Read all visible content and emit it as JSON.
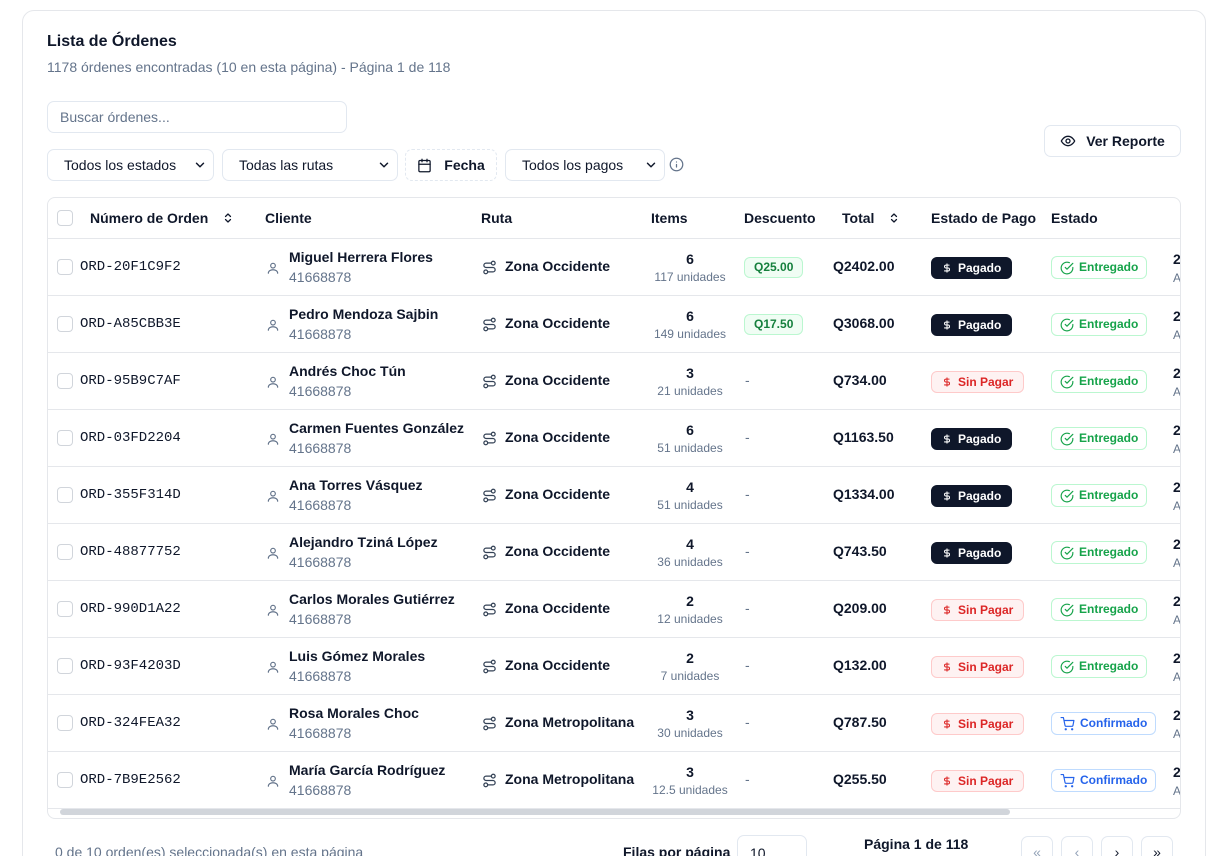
{
  "header": {
    "title": "Lista de Órdenes",
    "subtitle": "1178 órdenes encontradas (10 en esta página) - Página 1 de 118"
  },
  "search": {
    "placeholder": "Buscar órdenes...",
    "value": ""
  },
  "toolbar": {
    "report_label": "Ver Reporte"
  },
  "filters": {
    "status": "Todos los estados",
    "routes": "Todas las rutas",
    "date": "Fecha",
    "payments": "Todos los pagos"
  },
  "table": {
    "columns": [
      "Número de Orden",
      "Cliente",
      "Ruta",
      "Items",
      "Descuento",
      "Total",
      "Estado de Pago",
      "Estado"
    ],
    "rows": [
      {
        "order": "ORD-20F1C9F2",
        "client": "Miguel Herrera Flores",
        "phone": "41668878",
        "route": "Zona Occidente",
        "items": "6",
        "units": "117 unidades",
        "discount": "Q25.00",
        "total": "Q2402.00",
        "payment": "Pagado",
        "status": "Entregado",
        "extra": "2",
        "extra2": "A"
      },
      {
        "order": "ORD-A85CBB3E",
        "client": "Pedro Mendoza Sajbin",
        "phone": "41668878",
        "route": "Zona Occidente",
        "items": "6",
        "units": "149 unidades",
        "discount": "Q17.50",
        "total": "Q3068.00",
        "payment": "Pagado",
        "status": "Entregado",
        "extra": "2",
        "extra2": "A"
      },
      {
        "order": "ORD-95B9C7AF",
        "client": "Andrés Choc Tún",
        "phone": "41668878",
        "route": "Zona Occidente",
        "items": "3",
        "units": "21 unidades",
        "discount": "-",
        "total": "Q734.00",
        "payment": "Sin Pagar",
        "status": "Entregado",
        "extra": "2",
        "extra2": "A"
      },
      {
        "order": "ORD-03FD2204",
        "client": "Carmen Fuentes González",
        "phone": "41668878",
        "route": "Zona Occidente",
        "items": "6",
        "units": "51 unidades",
        "discount": "-",
        "total": "Q1163.50",
        "payment": "Pagado",
        "status": "Entregado",
        "extra": "2",
        "extra2": "A"
      },
      {
        "order": "ORD-355F314D",
        "client": "Ana Torres Vásquez",
        "phone": "41668878",
        "route": "Zona Occidente",
        "items": "4",
        "units": "51 unidades",
        "discount": "-",
        "total": "Q1334.00",
        "payment": "Pagado",
        "status": "Entregado",
        "extra": "2",
        "extra2": "A"
      },
      {
        "order": "ORD-48877752",
        "client": "Alejandro Tziná López",
        "phone": "41668878",
        "route": "Zona Occidente",
        "items": "4",
        "units": "36 unidades",
        "discount": "-",
        "total": "Q743.50",
        "payment": "Pagado",
        "status": "Entregado",
        "extra": "2",
        "extra2": "A"
      },
      {
        "order": "ORD-990D1A22",
        "client": "Carlos Morales Gutiérrez",
        "phone": "41668878",
        "route": "Zona Occidente",
        "items": "2",
        "units": "12 unidades",
        "discount": "-",
        "total": "Q209.00",
        "payment": "Sin Pagar",
        "status": "Entregado",
        "extra": "2",
        "extra2": "A"
      },
      {
        "order": "ORD-93F4203D",
        "client": "Luis Gómez Morales",
        "phone": "41668878",
        "route": "Zona Occidente",
        "items": "2",
        "units": "7 unidades",
        "discount": "-",
        "total": "Q132.00",
        "payment": "Sin Pagar",
        "status": "Entregado",
        "extra": "2",
        "extra2": "A"
      },
      {
        "order": "ORD-324FEA32",
        "client": "Rosa Morales Choc",
        "phone": "41668878",
        "route": "Zona Metropolitana",
        "items": "3",
        "units": "30 unidades",
        "discount": "-",
        "total": "Q787.50",
        "payment": "Sin Pagar",
        "status": "Confirmado",
        "extra": "2",
        "extra2": "A"
      },
      {
        "order": "ORD-7B9E2562",
        "client": "María García Rodríguez",
        "phone": "41668878",
        "route": "Zona Metropolitana",
        "items": "3",
        "units": "12.5 unidades",
        "discount": "-",
        "total": "Q255.50",
        "payment": "Sin Pagar",
        "status": "Confirmado",
        "extra": "2",
        "extra2": "A"
      }
    ]
  },
  "footer": {
    "selection": "0 de 10 orden(es) seleccionada(s) en esta página",
    "rows_label": "Filas por página",
    "rows_value": "10",
    "page_info": "Página 1 de 118",
    "first_label": "«",
    "prev_label": "‹",
    "next_label": "›",
    "last_label": "»"
  },
  "colors": {
    "paid_bg": "#0f172a",
    "unpaid_text": "#dc2626",
    "delivered": "#16a34a",
    "confirmed": "#2563eb",
    "discount": "#15803d"
  }
}
